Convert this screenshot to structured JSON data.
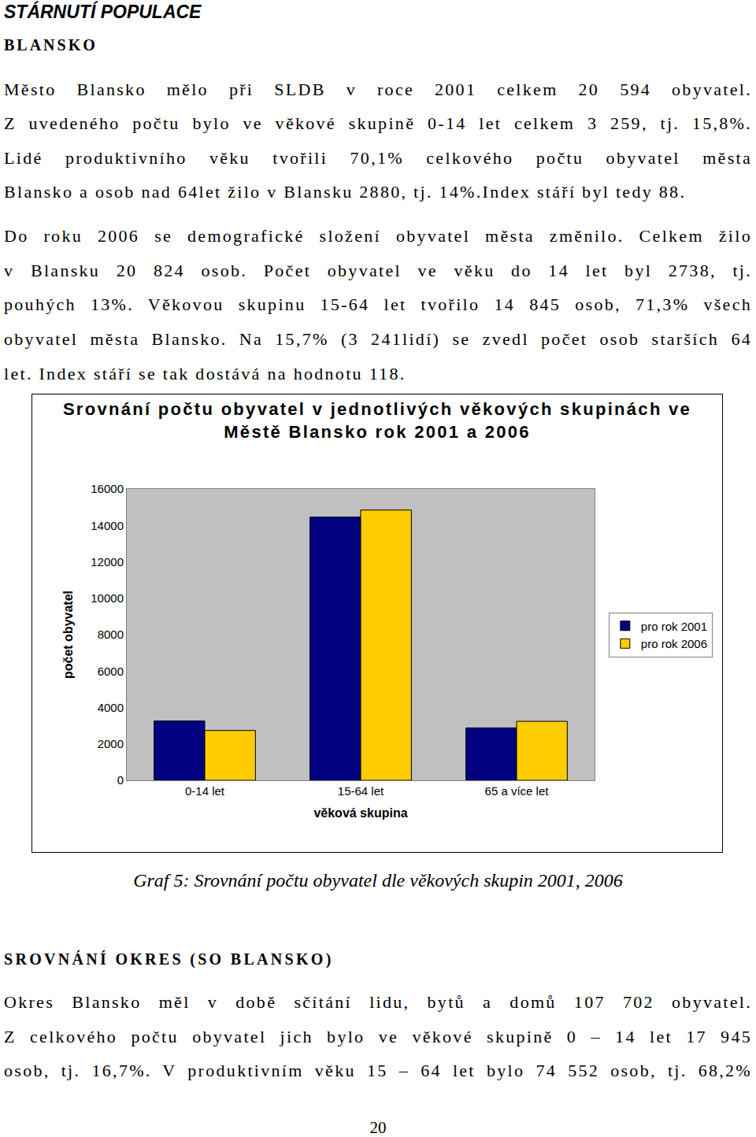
{
  "header": {
    "title": "STÁRNUTÍ POPULACE",
    "subtitle": "BLANSKO"
  },
  "paragraphs": [
    [
      "Město Blansko mělo při SLDB v roce 2001 celkem 20 594 obyvatel.",
      "Z uvedeného počtu bylo ve věkové skupině 0-14 let celkem 3 259, tj. 15,8%.",
      "Lidé produktivního věku tvořili 70,1% celkového počtu obyvatel města",
      "Blansko a osob nad 64let žilo v Blansku 2880, tj. 14%.Index stáří byl tedy 88."
    ],
    [
      "Do roku 2006 se demografické složení obyvatel města změnilo. Celkem žilo",
      "v Blansku 20 824 osob. Počet obyvatel ve věku do 14 let byl 2738, tj.",
      "pouhých 13%. Věkovou skupinu 15-64 let tvořilo 14 845 osob, 71,3% všech",
      "obyvatel města Blansko. Na 15,7% (3 241lidí) se zvedl počet osob starších 64",
      "let. Index stáří se tak dostává na hodnotu 118."
    ]
  ],
  "chart_data": {
    "type": "bar",
    "title": [
      "Srovnání počtu obyvatel v jednotlivých věkových skupinách ve",
      "Městě Blansko rok  2001 a 2006"
    ],
    "x_label": "věková skupina",
    "y_label": "počet obyvatel",
    "categories": [
      "0-14 let",
      "15-64 let",
      "65 a více let"
    ],
    "series": [
      {
        "name": "pro rok 2001",
        "color": "#000080",
        "values": [
          3259,
          14455,
          2880
        ]
      },
      {
        "name": "pro rok 2006",
        "color": "#ffcc00",
        "values": [
          2738,
          14845,
          3241
        ]
      }
    ],
    "ylim": [
      0,
      16000
    ],
    "yticks": [
      0,
      2000,
      4000,
      6000,
      8000,
      10000,
      12000,
      14000,
      16000
    ],
    "grid": false,
    "legend": "right"
  },
  "caption": "Graf 5: Srovnání počtu obyvatel dle věkových skupin 2001, 2006",
  "section": {
    "title": "SROVNÁNÍ OKRES (SO BLANSKO)",
    "lines": [
      "Okres Blansko měl v době sčítání lidu, bytů a domů 107 702 obyvatel.",
      "Z celkového počtu obyvatel jich bylo ve věkové skupině 0 – 14 let 17 945",
      "osob, tj. 16,7%. V produktivním věku 15 – 64 let bylo 74 552 osob, tj. 68,2%"
    ]
  },
  "page_number": "20"
}
